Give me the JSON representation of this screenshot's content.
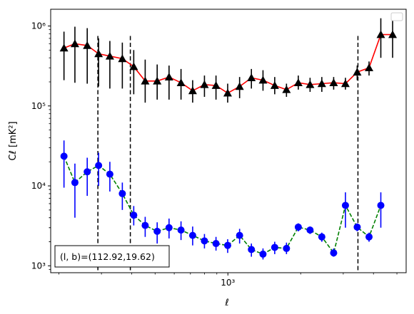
{
  "chart_data": {
    "type": "line",
    "title": "",
    "xlabel": "ℓ",
    "ylabel": "Cℓ  [mK²]",
    "xscale": "log",
    "yscale": "log",
    "xlim": [
      185,
      5460
    ],
    "ylim": [
      820,
      1620000
    ],
    "grid": false,
    "legend": {
      "placement": "upper right",
      "entries": []
    },
    "x_ticks": [
      {
        "value": 1000,
        "label": "10³"
      }
    ],
    "y_ticks": [
      {
        "value": 1000,
        "label": "10³"
      },
      {
        "value": 10000,
        "label": "10⁴"
      },
      {
        "value": 100000,
        "label": "10⁵"
      },
      {
        "value": 1000000,
        "label": "10⁶"
      }
    ],
    "vlines": [
      {
        "x": 290
      },
      {
        "x": 395
      },
      {
        "x": 3450
      }
    ],
    "series": [
      {
        "color": "#ff0000",
        "marker": "triangle",
        "marker_color": "#000000",
        "errorbar_color": "#000000",
        "linestyle": "solid",
        "x": [
          210,
          233,
          262,
          292,
          325,
          366,
          408,
          455,
          510,
          571,
          640,
          715,
          800,
          893,
          998,
          1118,
          1251,
          1397,
          1562,
          1747,
          1955,
          2187,
          2446,
          2738,
          3063,
          3426,
          3835,
          4290,
          4800
        ],
        "y": [
          530000,
          600000,
          570000,
          450000,
          420000,
          390000,
          310000,
          205000,
          205000,
          230000,
          195000,
          155000,
          185000,
          180000,
          145000,
          175000,
          225000,
          210000,
          180000,
          160000,
          195000,
          185000,
          190000,
          195000,
          190000,
          265000,
          300000,
          780000,
          780000
        ],
        "y_err_low": [
          210000,
          195000,
          190000,
          175000,
          165000,
          165000,
          140000,
          110000,
          120000,
          120000,
          120000,
          110000,
          130000,
          120000,
          110000,
          125000,
          165000,
          155000,
          140000,
          130000,
          160000,
          150000,
          150000,
          160000,
          160000,
          210000,
          240000,
          400000,
          400000
        ],
        "y_err_high": [
          850000,
          980000,
          940000,
          700000,
          650000,
          620000,
          500000,
          380000,
          330000,
          320000,
          290000,
          210000,
          240000,
          240000,
          190000,
          230000,
          290000,
          280000,
          230000,
          190000,
          240000,
          225000,
          230000,
          230000,
          225000,
          320000,
          360000,
          1250000,
          1250000
        ]
      },
      {
        "color": "#008000",
        "marker": "circle",
        "marker_color": "#0000ff",
        "errorbar_color": "#0000ff",
        "linestyle": "dashed",
        "x": [
          210,
          233,
          262,
          292,
          325,
          366,
          408,
          455,
          510,
          571,
          640,
          715,
          800,
          893,
          998,
          1118,
          1251,
          1397,
          1562,
          1747,
          1955,
          2187,
          2446,
          2738,
          3063,
          3426,
          3835,
          4290
        ],
        "y": [
          23500,
          11000,
          15000,
          18000,
          14000,
          8000,
          4300,
          3200,
          2700,
          3000,
          2800,
          2400,
          2050,
          1900,
          1800,
          2400,
          1600,
          1400,
          1700,
          1650,
          3050,
          2800,
          2300,
          1450,
          5700,
          3050,
          2300,
          5700
        ],
        "y_err_low": [
          9500,
          4000,
          7500,
          10000,
          8500,
          5000,
          3200,
          2300,
          1900,
          2200,
          2100,
          1800,
          1650,
          1550,
          1450,
          1900,
          1300,
          1200,
          1400,
          1400,
          2700,
          2500,
          2000,
          1300,
          3000,
          2700,
          2000,
          3000
        ],
        "y_err_high": [
          37000,
          19000,
          22500,
          26000,
          20000,
          11000,
          5600,
          4100,
          3500,
          3900,
          3600,
          3100,
          2500,
          2300,
          2150,
          2900,
          1900,
          1650,
          2000,
          1950,
          3400,
          3100,
          2600,
          1650,
          8300,
          3400,
          2600,
          8300
        ]
      }
    ],
    "annotations": [
      {
        "text": "(l, b)=(112.92,19.62)",
        "placement": "lower left"
      }
    ]
  }
}
